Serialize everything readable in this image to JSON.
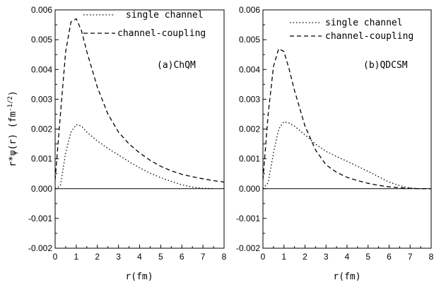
{
  "chart_data": [
    {
      "type": "line",
      "panel_label": "(a)ChQM",
      "xlabel": "r(fm)",
      "ylabel": "r*ψ(r)  (fm",
      "ylabel_exp": "-1/2",
      "ylabel_close": ")",
      "xlim": [
        0,
        8
      ],
      "ylim": [
        -0.002,
        0.006
      ],
      "xticks": [
        "0",
        "1",
        "2",
        "3",
        "4",
        "5",
        "6",
        "7",
        "8"
      ],
      "yticks": [
        "-0.002",
        "-0.001",
        "0.000",
        "0.001",
        "0.002",
        "0.003",
        "0.004",
        "0.005",
        "0.006"
      ],
      "legend": {
        "position": "top-right",
        "entries": [
          "single channel",
          "channel-coupling"
        ]
      },
      "series": [
        {
          "name": "single channel",
          "style": "dotted",
          "x": [
            0,
            0.25,
            0.5,
            0.75,
            1.0,
            1.25,
            1.5,
            2.0,
            2.5,
            3.0,
            3.5,
            4.0,
            4.5,
            5.0,
            5.5,
            6.0,
            6.5,
            7.0,
            7.5
          ],
          "y": [
            0.0,
            0.0001,
            0.0012,
            0.0019,
            0.00215,
            0.0021,
            0.0019,
            0.0016,
            0.00135,
            0.00113,
            0.0009,
            0.0007,
            0.00052,
            0.00037,
            0.00024,
            0.00013,
            5e-05,
            1e-05,
            0.0
          ]
        },
        {
          "name": "channel-coupling",
          "style": "dashed",
          "x": [
            0,
            0.25,
            0.5,
            0.75,
            1.0,
            1.25,
            1.5,
            2.0,
            2.5,
            3.0,
            3.5,
            4.0,
            4.5,
            5.0,
            5.5,
            6.0,
            6.5,
            7.0,
            7.5,
            8.0
          ],
          "y": [
            0.0003,
            0.0025,
            0.0046,
            0.0056,
            0.0057,
            0.0053,
            0.0046,
            0.0034,
            0.0025,
            0.0019,
            0.0015,
            0.0012,
            0.00095,
            0.00075,
            0.0006,
            0.00048,
            0.0004,
            0.00033,
            0.00027,
            0.00022
          ]
        }
      ]
    },
    {
      "type": "line",
      "panel_label": "(b)QDCSM",
      "xlabel": "r(fm)",
      "xlim": [
        0,
        8
      ],
      "ylim": [
        -0.002,
        0.006
      ],
      "xticks": [
        "0",
        "1",
        "2",
        "3",
        "4",
        "5",
        "6",
        "7",
        "8"
      ],
      "yticks": [
        "-0.002",
        "-0.001",
        "0.000",
        "0.001",
        "0.002",
        "0.003",
        "0.004",
        "0.005",
        "0.006"
      ],
      "legend": {
        "position": "top-right",
        "entries": [
          "single channel",
          "channel-coupling"
        ]
      },
      "series": [
        {
          "name": "single channel",
          "style": "dotted",
          "x": [
            0,
            0.25,
            0.5,
            0.75,
            1.0,
            1.25,
            1.5,
            2.0,
            2.5,
            3.0,
            3.5,
            4.0,
            4.5,
            5.0,
            5.5,
            6.0,
            6.5,
            7.0,
            7.5
          ],
          "y": [
            0.0,
            0.0002,
            0.0012,
            0.002,
            0.00225,
            0.0022,
            0.0021,
            0.0018,
            0.0015,
            0.00125,
            0.00108,
            0.00092,
            0.00075,
            0.00058,
            0.0004,
            0.00022,
            0.0001,
            2e-05,
            0.0
          ]
        },
        {
          "name": "channel-coupling",
          "style": "dashed",
          "x": [
            0,
            0.25,
            0.5,
            0.75,
            1.0,
            1.25,
            1.5,
            2.0,
            2.5,
            3.0,
            3.5,
            4.0,
            4.5,
            5.0,
            5.5,
            6.0,
            6.5,
            7.0,
            7.5,
            8.0
          ],
          "y": [
            0.0003,
            0.0025,
            0.0041,
            0.0047,
            0.0046,
            0.004,
            0.0033,
            0.0021,
            0.0013,
            0.0008,
            0.00055,
            0.00038,
            0.00027,
            0.00018,
            0.00011,
            6e-05,
            3e-05,
            1e-05,
            0.0,
            0.0
          ]
        }
      ]
    }
  ]
}
